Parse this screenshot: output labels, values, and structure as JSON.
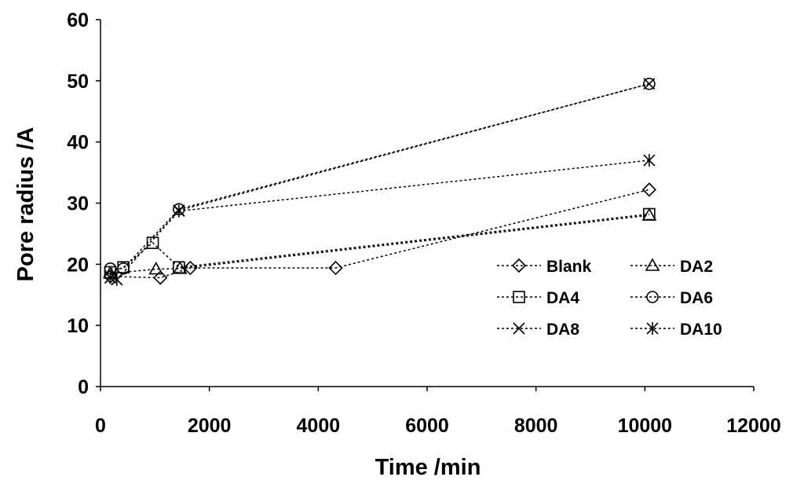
{
  "chart_data": {
    "type": "line",
    "xlabel": "Time /min",
    "ylabel": "Pore radius /A",
    "xlim": [
      0,
      12000
    ],
    "ylim": [
      0,
      60
    ],
    "xticks": [
      0,
      2000,
      4000,
      6000,
      8000,
      10000,
      12000
    ],
    "yticks": [
      0,
      10,
      20,
      30,
      40,
      50,
      60
    ],
    "grid": false,
    "legend_position": "center-right",
    "series": [
      {
        "name": "Blank",
        "marker": "diamond",
        "x": [
          180,
          1100,
          1650,
          4320,
          10080
        ],
        "y": [
          18.0,
          17.8,
          19.4,
          19.4,
          32.2
        ]
      },
      {
        "name": "DA2",
        "marker": "triangle",
        "x": [
          180,
          1020,
          1460,
          10080
        ],
        "y": [
          18.5,
          19.2,
          19.3,
          28.0
        ]
      },
      {
        "name": "DA4",
        "marker": "square",
        "x": [
          180,
          420,
          960,
          1440,
          10080
        ],
        "y": [
          18.7,
          19.5,
          23.5,
          19.5,
          28.2
        ]
      },
      {
        "name": "DA6",
        "marker": "circle",
        "x": [
          180,
          420,
          1440,
          10080
        ],
        "y": [
          19.3,
          19.3,
          29.0,
          49.5
        ]
      },
      {
        "name": "DA8",
        "marker": "x",
        "x": [
          180,
          300,
          1440,
          10080
        ],
        "y": [
          17.8,
          17.5,
          28.8,
          49.5
        ]
      },
      {
        "name": "DA10",
        "marker": "asterisk",
        "x": [
          180,
          300,
          1440,
          10080
        ],
        "y": [
          17.8,
          17.5,
          28.7,
          37.0
        ]
      }
    ]
  }
}
